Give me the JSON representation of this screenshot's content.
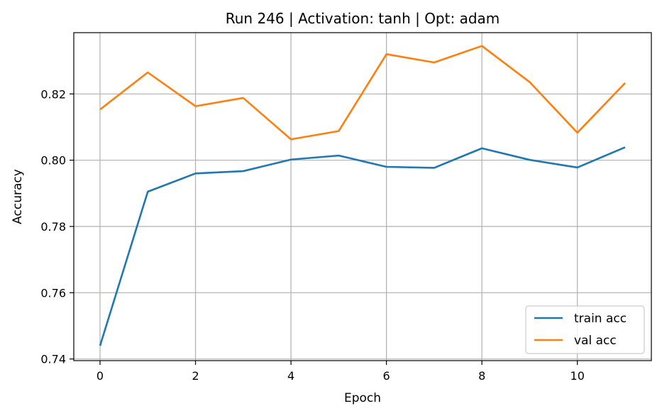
{
  "chart_data": {
    "type": "line",
    "title": "Run 246 | Activation: tanh | Opt: adam",
    "xlabel": "Epoch",
    "ylabel": "Accuracy",
    "x": [
      0,
      1,
      2,
      3,
      4,
      5,
      6,
      7,
      8,
      9,
      10,
      11
    ],
    "xlim": [
      -0.55,
      11.55
    ],
    "ylim": [
      0.7395,
      0.8385
    ],
    "xticks": [
      0,
      2,
      4,
      6,
      8,
      10
    ],
    "yticks": [
      0.74,
      0.76,
      0.78,
      0.8,
      0.82
    ],
    "ytick_labels": [
      "0.74",
      "0.76",
      "0.78",
      "0.80",
      "0.82"
    ],
    "grid": true,
    "legend_position": "lower-right",
    "series": [
      {
        "name": "train acc",
        "color": "#1f77b4",
        "values": [
          0.744,
          0.7905,
          0.796,
          0.7967,
          0.8002,
          0.8014,
          0.798,
          0.7977,
          0.8036,
          0.8001,
          0.7978,
          0.8039
        ]
      },
      {
        "name": "val acc",
        "color": "#ff7f0e",
        "values": [
          0.8153,
          0.8265,
          0.8163,
          0.8188,
          0.8063,
          0.8088,
          0.832,
          0.8295,
          0.8345,
          0.8236,
          0.8083,
          0.8233
        ]
      }
    ]
  }
}
